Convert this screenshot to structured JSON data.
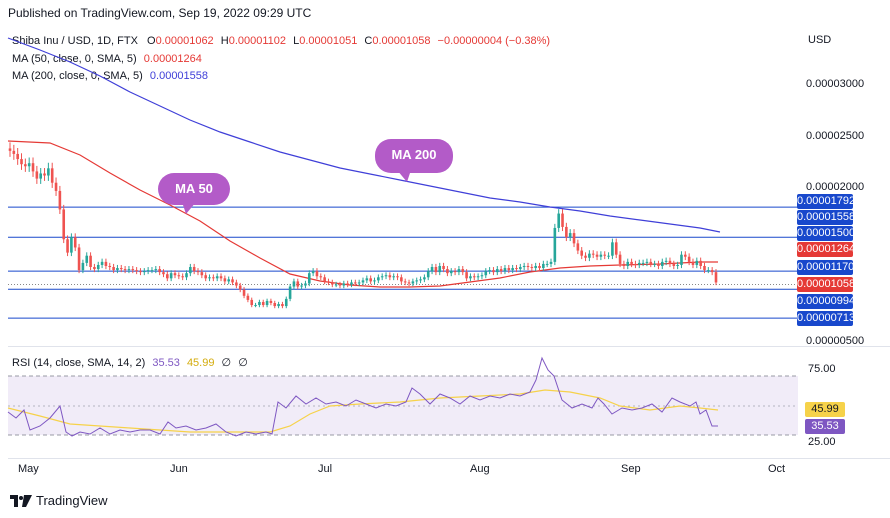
{
  "published": "Published on TradingView.com, Sep 19, 2022 09:29 UTC",
  "legend": {
    "symbol": "Shiba Inu / USD, 1D, FTX",
    "o_label": "O",
    "o_value": "0.00001062",
    "h_label": "H",
    "h_value": "0.00001102",
    "l_label": "L",
    "l_value": "0.00001051",
    "c_label": "C",
    "c_value": "0.00001058",
    "change": "−0.00000004 (−0.38%)",
    "ma50_label": "MA (50, close, 0, SMA, 5)",
    "ma50_value": "0.00001264",
    "ma200_label": "MA (200, close, 0, SMA, 5)",
    "ma200_value": "0.00001558"
  },
  "currency": "USD",
  "price_ticks": [
    "0.00003000",
    "0.00002500",
    "0.00002000",
    "0.00000500"
  ],
  "price_badges": [
    {
      "text": "0.00001792",
      "color": "#1848cc"
    },
    {
      "text": "0.00001558",
      "color": "#1848cc"
    },
    {
      "text": "0.00001500",
      "color": "#1848cc"
    },
    {
      "text": "0.00001264",
      "color": "#e53935"
    },
    {
      "text": "0.00001170",
      "color": "#1848cc"
    },
    {
      "text": "0.00001058",
      "color": "#e53935"
    },
    {
      "text": "0.00000994",
      "color": "#1848cc"
    },
    {
      "text": "0.00000713",
      "color": "#1848cc"
    }
  ],
  "bubbles": {
    "ma50": "MA 50",
    "ma200": "MA 200"
  },
  "rsi": {
    "label": "RSI (14, close, SMA, 14, 2)",
    "value": "35.53",
    "ma_value": "45.99",
    "extra1": "∅",
    "extra2": "∅",
    "ticks": [
      "75.00",
      "25.00"
    ],
    "badge_rsi": "35.53",
    "badge_ma": "45.99"
  },
  "x_labels": [
    "May",
    "Jun",
    "Jul",
    "Aug",
    "Sep",
    "Oct"
  ],
  "footer": "TradingView",
  "colors": {
    "up": "#26a69a",
    "down": "#ef5350",
    "ma50": "#e53935",
    "ma200": "#3f3fd8",
    "hline": "#1848cc",
    "rsi": "#7e57c2",
    "rsi_ma": "#f6d24a",
    "bubble": "#b35bc8"
  },
  "chart_data": {
    "type": "candlestick",
    "title": "Shiba Inu / USD, 1D, FTX",
    "ylabel": "USD",
    "ylim": [
      5e-06,
      3.1e-05
    ],
    "x_range": [
      "2022-04-27",
      "2022-10-04"
    ],
    "horizontal_levels": [
      1.792e-05,
      1.5e-05,
      1.17e-05,
      9.94e-06,
      7.13e-06
    ],
    "closes": [
      2.34e-05,
      2.31e-05,
      2.26e-05,
      2.21e-05,
      2.19e-05,
      2.22e-05,
      2.14e-05,
      2.07e-05,
      2.12e-05,
      2.1e-05,
      2.17e-05,
      2.03e-05,
      1.95e-05,
      1.77e-05,
      1.48e-05,
      1.35e-05,
      1.5e-05,
      1.4e-05,
      1.18e-05,
      1.25e-05,
      1.32e-05,
      1.21e-05,
      1.19e-05,
      1.23e-05,
      1.26e-05,
      1.22e-05,
      1.21e-05,
      1.18e-05,
      1.2e-05,
      1.19e-05,
      1.18e-05,
      1.19e-05,
      1.18e-05,
      1.17e-05,
      1.16e-05,
      1.17e-05,
      1.18e-05,
      1.18e-05,
      1.19e-05,
      1.16e-05,
      1.14e-05,
      1.1e-05,
      1.15e-05,
      1.13e-05,
      1.12e-05,
      1.11e-05,
      1.15e-05,
      1.21e-05,
      1.17e-05,
      1.16e-05,
      1.13e-05,
      1.1e-05,
      1.11e-05,
      1.1e-05,
      1.12e-05,
      1.1e-05,
      1.07e-05,
      1.09e-05,
      1.06e-05,
      1.03e-05,
      9.9e-06,
      9.3e-06,
      8.9e-06,
      8.4e-06,
      8.4e-06,
      8.7e-06,
      8.4e-06,
      8.8e-06,
      8.6e-06,
      8.3e-06,
      8.5e-06,
      8.3e-06,
      9e-06,
      1.02e-05,
      1.07e-05,
      1.02e-05,
      1.03e-05,
      1.05e-05,
      1.15e-05,
      1.17e-05,
      1.12e-05,
      1.11e-05,
      1.07e-05,
      1.06e-05,
      1.04e-05,
      1.04e-05,
      1.03e-05,
      1.05e-05,
      1.04e-05,
      1.06e-05,
      1.05e-05,
      1.06e-05,
      1.08e-05,
      1.1e-05,
      1.07e-05,
      1.08e-05,
      1.11e-05,
      1.12e-05,
      1.13e-05,
      1.11e-05,
      1.12e-05,
      1.11e-05,
      1.07e-05,
      1.06e-05,
      1.05e-05,
      1.07e-05,
      1.08e-05,
      1.09e-05,
      1.11e-05,
      1.17e-05,
      1.21e-05,
      1.16e-05,
      1.22e-05,
      1.19e-05,
      1.15e-05,
      1.17e-05,
      1.16e-05,
      1.19e-05,
      1.16e-05,
      1.1e-05,
      1.12e-05,
      1.11e-05,
      1.12e-05,
      1.13e-05,
      1.17e-05,
      1.18e-05,
      1.16e-05,
      1.19e-05,
      1.17e-05,
      1.2e-05,
      1.18e-05,
      1.2e-05,
      1.19e-05,
      1.21e-05,
      1.22e-05,
      1.21e-05,
      1.2e-05,
      1.22e-05,
      1.2e-05,
      1.24e-05,
      1.24e-05,
      1.26e-05,
      1.59e-05,
      1.73e-05,
      1.6e-05,
      1.5e-05,
      1.54e-05,
      1.44e-05,
      1.37e-05,
      1.32e-05,
      1.3e-05,
      1.34e-05,
      1.33e-05,
      1.31e-05,
      1.33e-05,
      1.32e-05,
      1.32e-05,
      1.45e-05,
      1.33e-05,
      1.24e-05,
      1.22e-05,
      1.26e-05,
      1.24e-05,
      1.23e-05,
      1.25e-05,
      1.25e-05,
      1.26e-05,
      1.24e-05,
      1.24e-05,
      1.22e-05,
      1.26e-05,
      1.27e-05,
      1.24e-05,
      1.22e-05,
      1.23e-05,
      1.33e-05,
      1.31e-05,
      1.26e-05,
      1.23e-05,
      1.27e-05,
      1.22e-05,
      1.18e-05,
      1.18e-05,
      1.16e-05,
      1.06e-05
    ]
  }
}
